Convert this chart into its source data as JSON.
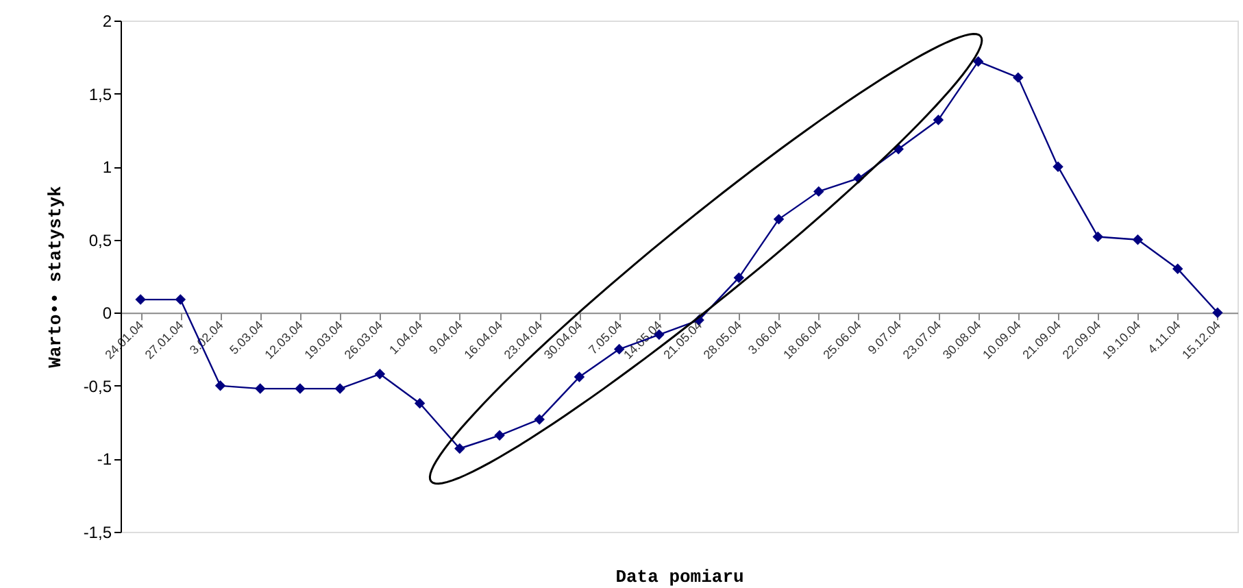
{
  "chart_data": {
    "type": "line",
    "xlabel": "Data pomiaru",
    "ylabel": "Warto•• statystyk",
    "categories": [
      "24.01.04",
      "27.01.04",
      "3.02.04",
      "5.03.04",
      "12.03.04",
      "19.03.04",
      "26.03.04",
      "1.04.04",
      "9.04.04",
      "16.04.04",
      "23.04.04",
      "30.04.04",
      "7.05.04",
      "14.05.04",
      "21.05.04",
      "28.05.04",
      "3.06.04",
      "18.06.04",
      "25.06.04",
      "9.07.04",
      "23.07.04",
      "30.08.04",
      "10.09.04",
      "21.09.04",
      "22.09.04",
      "19.10.04",
      "4.11.04",
      "15.12.04"
    ],
    "series": [
      {
        "color": "#000080",
        "values": [
          0.09,
          0.09,
          -0.5,
          -0.52,
          -0.52,
          -0.52,
          -0.42,
          -0.62,
          -0.93,
          -0.84,
          -0.73,
          -0.44,
          -0.25,
          -0.15,
          -0.05,
          0.24,
          0.64,
          0.83,
          0.92,
          1.12,
          1.32,
          1.72,
          1.61,
          1.0,
          0.52,
          0.5,
          0.3,
          0.0
        ]
      }
    ],
    "ylim": [
      -1.5,
      2
    ],
    "yticks": [
      {
        "value": -1.5,
        "label": "-1,5"
      },
      {
        "value": -1,
        "label": "-1"
      },
      {
        "value": -0.5,
        "label": "-0,5"
      },
      0,
      {
        "value": 0.5,
        "label": "0,5"
      },
      1,
      {
        "value": 1.5,
        "label": "1,5"
      },
      2
    ],
    "grid": false,
    "marker": "diamond",
    "line_style": "solid"
  }
}
